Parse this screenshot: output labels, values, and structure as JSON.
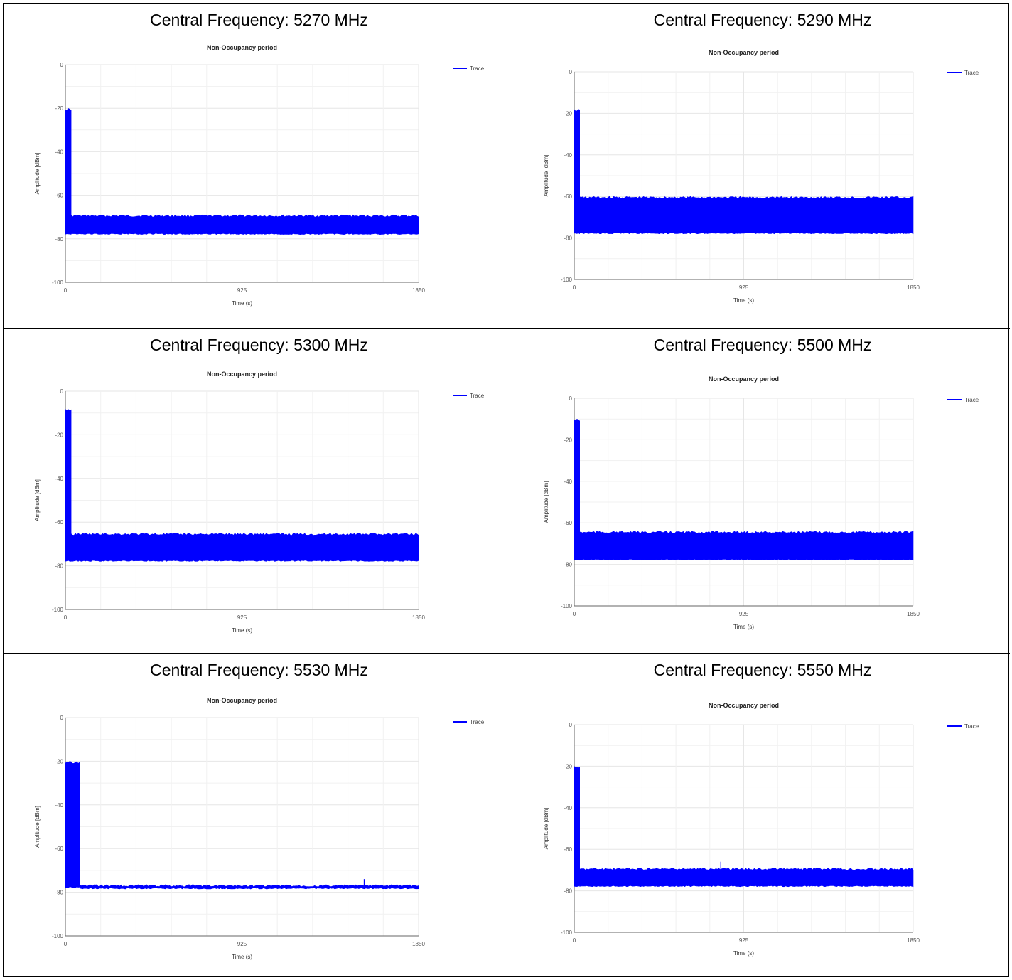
{
  "chart_data": [
    {
      "type": "line",
      "caption": "Central Frequency: 5270 MHz",
      "title": "Non-Occupancy period",
      "xlabel": "Time (s)",
      "ylabel": "Amplitude [dBm]",
      "xlim": [
        0,
        1850
      ],
      "ylim": [
        -100,
        0
      ],
      "xticks": [
        "0",
        "925",
        "1850"
      ],
      "yticks": [
        "0",
        "-20",
        "-40",
        "-60",
        "-80",
        "-100"
      ],
      "legend": "top-right",
      "grid": true,
      "series": [
        {
          "name": "Trace",
          "color": "#0000ff",
          "segments": [
            {
              "x": [
                0,
                30
              ],
              "low": -78,
              "high": -20
            },
            {
              "x": [
                30,
                1850
              ],
              "low": -78,
              "high": -69
            }
          ]
        }
      ]
    },
    {
      "type": "line",
      "caption": "Central Frequency: 5290 MHz",
      "title": "Non-Occupancy period",
      "xlabel": "Time (s)",
      "ylabel": "Amplitude [dBm]",
      "xlim": [
        0,
        1850
      ],
      "ylim": [
        -100,
        0
      ],
      "xticks": [
        "0",
        "925",
        "1850"
      ],
      "yticks": [
        "0",
        "-20",
        "-40",
        "-60",
        "-80",
        "-100"
      ],
      "legend": "top-right",
      "grid": true,
      "series": [
        {
          "name": "Trace",
          "color": "#0000ff",
          "segments": [
            {
              "x": [
                0,
                30
              ],
              "low": -78,
              "high": -18
            },
            {
              "x": [
                30,
                1850
              ],
              "low": -78,
              "high": -60
            }
          ]
        }
      ]
    },
    {
      "type": "line",
      "caption": "Central Frequency: 5300 MHz",
      "title": "Non-Occupancy period",
      "xlabel": "Time (s)",
      "ylabel": "Amplitude [dBm]",
      "xlim": [
        0,
        1850
      ],
      "ylim": [
        -100,
        0
      ],
      "xticks": [
        "0",
        "925",
        "1850"
      ],
      "yticks": [
        "0",
        "-20",
        "-40",
        "-60",
        "-80",
        "-100"
      ],
      "legend": "top-right",
      "grid": true,
      "series": [
        {
          "name": "Trace",
          "color": "#0000ff",
          "segments": [
            {
              "x": [
                0,
                30
              ],
              "low": -78,
              "high": -8
            },
            {
              "x": [
                30,
                1850
              ],
              "low": -78,
              "high": -65
            }
          ]
        }
      ]
    },
    {
      "type": "line",
      "caption": "Central Frequency: 5500 MHz",
      "title": "Non-Occupancy period",
      "xlabel": "Time (s)",
      "ylabel": "Amplitude [dBm]",
      "xlim": [
        0,
        1850
      ],
      "ylim": [
        -100,
        0
      ],
      "xticks": [
        "0",
        "925",
        "1850"
      ],
      "yticks": [
        "0",
        "-20",
        "-40",
        "-60",
        "-80",
        "-100"
      ],
      "legend": "top-right",
      "grid": true,
      "series": [
        {
          "name": "Trace",
          "color": "#0000ff",
          "segments": [
            {
              "x": [
                0,
                30
              ],
              "low": -78,
              "high": -10
            },
            {
              "x": [
                30,
                1850
              ],
              "low": -78,
              "high": -64
            }
          ]
        }
      ]
    },
    {
      "type": "line",
      "caption": "Central Frequency: 5530 MHz",
      "title": "Non-Occupancy period",
      "xlabel": "Time (s)",
      "ylabel": "Amplitude [dBm]",
      "xlim": [
        0,
        1850
      ],
      "ylim": [
        -100,
        0
      ],
      "xticks": [
        "0",
        "925",
        "1850"
      ],
      "yticks": [
        "0",
        "-20",
        "-40",
        "-60",
        "-80",
        "-100"
      ],
      "legend": "top-right",
      "grid": true,
      "series": [
        {
          "name": "Trace",
          "color": "#0000ff",
          "segments": [
            {
              "x": [
                0,
                75
              ],
              "low": -78,
              "high": -20
            },
            {
              "x": [
                75,
                1850
              ],
              "low": -78.5,
              "high": -76.5
            }
          ],
          "spikes": [
            {
              "x": 1565,
              "y": -74
            }
          ]
        }
      ]
    },
    {
      "type": "line",
      "caption": "Central Frequency: 5550 MHz",
      "title": "Non-Occupancy period",
      "xlabel": "Time (s)",
      "ylabel": "Amplitude [dBm]",
      "xlim": [
        0,
        1850
      ],
      "ylim": [
        -100,
        0
      ],
      "xticks": [
        "0",
        "925",
        "1850"
      ],
      "yticks": [
        "0",
        "-20",
        "-40",
        "-60",
        "-80",
        "-100"
      ],
      "legend": "top-right",
      "grid": true,
      "series": [
        {
          "name": "Trace",
          "color": "#0000ff",
          "segments": [
            {
              "x": [
                0,
                30
              ],
              "low": -78,
              "high": -20
            },
            {
              "x": [
                30,
                1850
              ],
              "low": -78,
              "high": -69
            }
          ],
          "spikes": [
            {
              "x": 800,
              "y": -66
            }
          ]
        }
      ]
    }
  ]
}
